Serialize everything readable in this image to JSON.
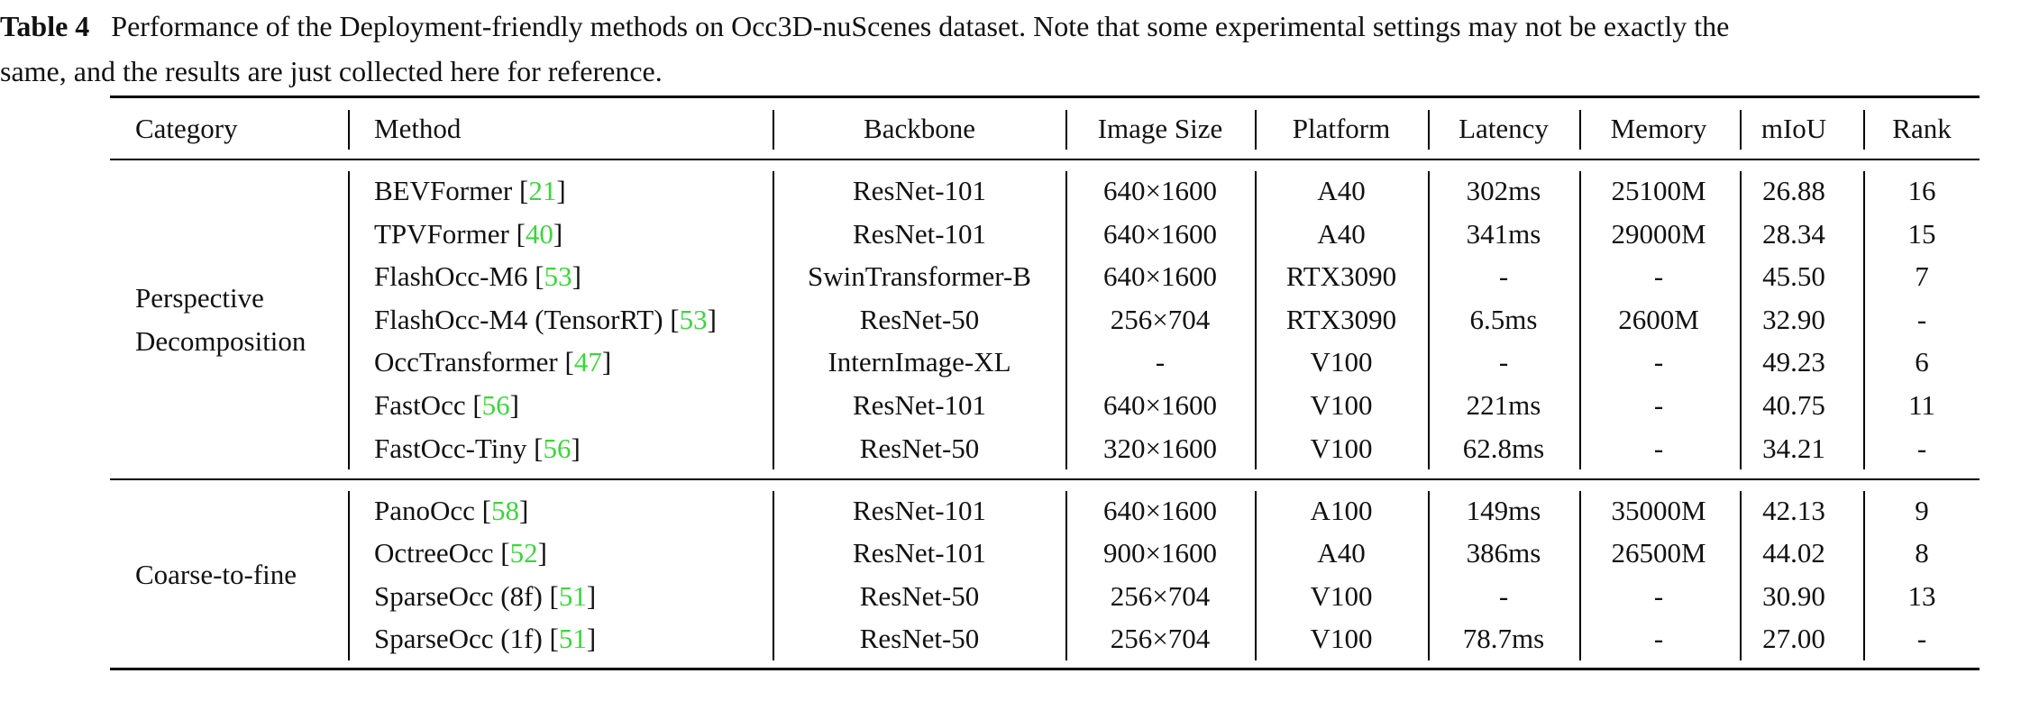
{
  "caption": {
    "label": "Table 4",
    "line1": "Performance of the Deployment-friendly methods on Occ3D-nuScenes dataset. Note that some experimental settings may not be exactly the",
    "line2": "same, and the results are just collected here for reference."
  },
  "headers": [
    "Category",
    "Method",
    "Backbone",
    "Image Size",
    "Platform",
    "Latency",
    "Memory",
    "mIoU",
    "Rank"
  ],
  "groups": [
    {
      "category": [
        "Perspective",
        "Decomposition"
      ],
      "rows": [
        {
          "method": "BEVFormer",
          "cite": "21",
          "backbone": "ResNet-101",
          "image_size": "640×1600",
          "platform": "A40",
          "latency": "302ms",
          "memory": "25100M",
          "miou": "26.88",
          "rank": "16"
        },
        {
          "method": "TPVFormer",
          "cite": "40",
          "backbone": "ResNet-101",
          "image_size": "640×1600",
          "platform": "A40",
          "latency": "341ms",
          "memory": "29000M",
          "miou": "28.34",
          "rank": "15"
        },
        {
          "method": "FlashOcc-M6",
          "cite": "53",
          "backbone": "SwinTransformer-B",
          "image_size": "640×1600",
          "platform": "RTX3090",
          "latency": "-",
          "memory": "-",
          "miou": "45.50",
          "rank": "7"
        },
        {
          "method": "FlashOcc-M4 (TensorRT)",
          "cite": "53",
          "backbone": "ResNet-50",
          "image_size": "256×704",
          "platform": "RTX3090",
          "latency": "6.5ms",
          "memory": "2600M",
          "miou": "32.90",
          "rank": "-"
        },
        {
          "method": "OccTransformer",
          "cite": "47",
          "backbone": "InternImage-XL",
          "image_size": "-",
          "platform": "V100",
          "latency": "-",
          "memory": "-",
          "miou": "49.23",
          "rank": "6"
        },
        {
          "method": "FastOcc",
          "cite": "56",
          "backbone": "ResNet-101",
          "image_size": "640×1600",
          "platform": "V100",
          "latency": "221ms",
          "memory": "-",
          "miou": "40.75",
          "rank": "11"
        },
        {
          "method": "FastOcc-Tiny",
          "cite": "56",
          "backbone": "ResNet-50",
          "image_size": "320×1600",
          "platform": "V100",
          "latency": "62.8ms",
          "memory": "-",
          "miou": "34.21",
          "rank": "-"
        }
      ]
    },
    {
      "category": [
        "Coarse-to-fine"
      ],
      "rows": [
        {
          "method": "PanoOcc",
          "cite": "58",
          "backbone": "ResNet-101",
          "image_size": "640×1600",
          "platform": "A100",
          "latency": "149ms",
          "memory": "35000M",
          "miou": "42.13",
          "rank": "9"
        },
        {
          "method": "OctreeOcc",
          "cite": "52",
          "backbone": "ResNet-101",
          "image_size": "900×1600",
          "platform": "A40",
          "latency": "386ms",
          "memory": "26500M",
          "miou": "44.02",
          "rank": "8"
        },
        {
          "method": "SparseOcc (8f)",
          "cite": "51",
          "backbone": "ResNet-50",
          "image_size": "256×704",
          "platform": "V100",
          "latency": "-",
          "memory": "-",
          "miou": "30.90",
          "rank": "13"
        },
        {
          "method": "SparseOcc (1f)",
          "cite": "51",
          "backbone": "ResNet-50",
          "image_size": "256×704",
          "platform": "V100",
          "latency": "78.7ms",
          "memory": "-",
          "miou": "27.00",
          "rank": "-"
        }
      ]
    }
  ]
}
